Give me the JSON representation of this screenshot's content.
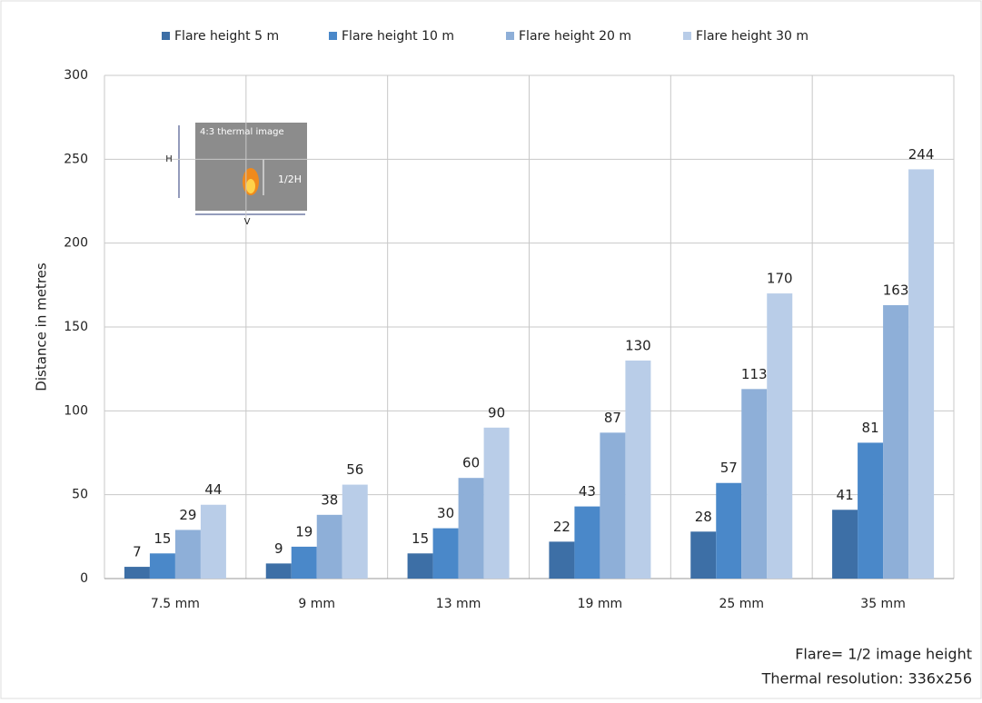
{
  "chart_data": {
    "type": "bar",
    "categories": [
      "7.5 mm",
      "9 mm",
      "13 mm",
      "19 mm",
      "25 mm",
      "35 mm"
    ],
    "series": [
      {
        "name": "Flare height 5 m",
        "color": "#3d6fa6",
        "values": [
          7,
          9,
          15,
          22,
          28,
          41
        ]
      },
      {
        "name": "Flare height 10 m",
        "color": "#4a88c9",
        "values": [
          15,
          19,
          30,
          43,
          57,
          81
        ]
      },
      {
        "name": "Flare height 20 m",
        "color": "#8eafd8",
        "values": [
          29,
          38,
          60,
          87,
          113,
          163
        ]
      },
      {
        "name": "Flare height 30 m",
        "color": "#b9cde8",
        "values": [
          44,
          56,
          90,
          130,
          170,
          244
        ]
      }
    ],
    "y_label": "Distance in metres",
    "ylim": [
      0,
      300
    ],
    "yticks": [
      0,
      50,
      100,
      150,
      200,
      250,
      300
    ],
    "grid": true,
    "legend": "top",
    "inset_labels": [
      "4:3 thermal image",
      "H",
      "1/2H",
      "V"
    ],
    "annotations": [
      "Flare= 1/2 image height",
      "Thermal resolution: 336x256"
    ]
  }
}
